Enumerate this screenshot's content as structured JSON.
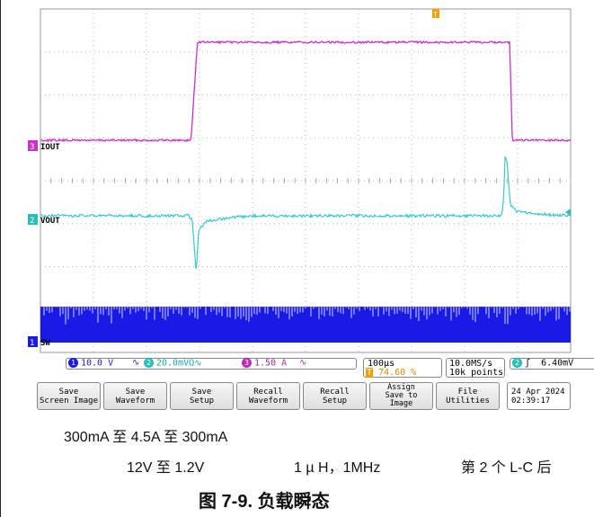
{
  "chart_data": {
    "type": "line",
    "series": [
      {
        "name": "IOUT",
        "channel": "3",
        "color": "#c832c8",
        "x": [
          0,
          284,
          296,
          885,
          890,
          1000
        ],
        "y": [
          0.3,
          0.3,
          4.5,
          4.5,
          0.3,
          0.3
        ]
      },
      {
        "name": "VOUT",
        "channel": "2",
        "color": "#3cc8c8",
        "x": [
          0,
          280,
          286,
          290,
          294,
          298,
          310,
          330,
          360,
          400,
          870,
          874,
          876,
          880,
          886,
          900,
          930,
          1000
        ],
        "y": [
          1.2,
          1.2,
          1.18,
          1.05,
          0.9,
          1.12,
          1.17,
          1.18,
          1.19,
          1.2,
          1.2,
          1.3,
          1.5,
          1.48,
          1.26,
          1.22,
          1.21,
          1.2
        ]
      },
      {
        "name": "SW",
        "channel": "1",
        "color": "#1a1ae6"
      }
    ],
    "channel_settings": {
      "ch1": "10.0 V",
      "ch1_suffix": "∿",
      "ch2": "20.0mV",
      "ch2_suffix": "Ω∿",
      "ch3": "1.50 A",
      "ch3_suffix": "∿"
    },
    "timebase": "100μs",
    "trigger_pos": "74.60 %",
    "sample_rate": "10.0MS/s",
    "record_length": "10k points",
    "trigger_channel": "2",
    "trigger_slope": "ʃ",
    "trigger_level": "6.40mV",
    "date": "24 Apr 2024",
    "time": "02:39:17",
    "grid": true
  },
  "scope": {
    "ch3_marker": "3",
    "ch2_marker": "2",
    "ch1_marker": "1",
    "trigger_marker": "T"
  },
  "menu": {
    "save_screen": "Save\nScreen Image",
    "save_waveform": "Save\nWaveform",
    "save_setup": "Save\nSetup",
    "recall_waveform": "Recall\nWaveform",
    "recall_setup": "Recall\nSetup",
    "assign_save": "Assign\nSave to\nImage",
    "file_utilities": "File\nUtilities"
  },
  "captions": {
    "load_step": "300mA 至 4.5A 至 300mA",
    "vin_vout": "12V 至 1.2V",
    "inductor": "1 µ H，1MHz",
    "filter": "第 2 个 L-C 后",
    "figure_title": "图 7-9. 负载瞬态"
  }
}
